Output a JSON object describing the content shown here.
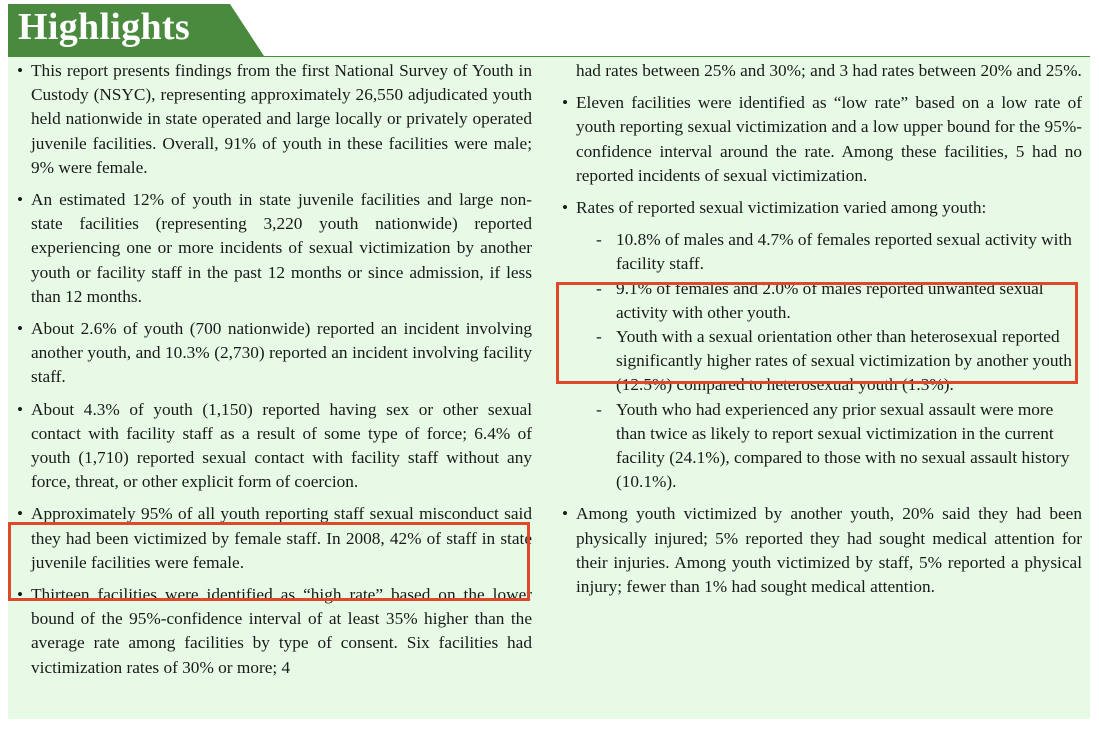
{
  "header": {
    "title": "Highlights"
  },
  "left_column": {
    "bullets": [
      "This report presents findings from the first National Survey of Youth in Custody (NSYC), representing approximately 26,550 adjudicated youth held nationwide in state operated and large locally or privately operated juvenile facilities. Overall, 91% of youth in these facilities were male; 9% were female.",
      "An estimated 12% of youth in state juvenile facilities and large non-state facilities (representing 3,220 youth nationwide) reported experiencing one or more incidents of sexual victimization by another youth or facility staff in the past 12 months or since admission, if less than 12 months.",
      "About 2.6% of youth (700 nationwide) reported an incident involving another youth, and 10.3% (2,730) reported an incident involving facility staff.",
      "About 4.3% of youth (1,150) reported having sex or other sexual contact with facility staff as a result of some type of force; 6.4% of youth (1,710) reported sexual contact with facility staff without any force, threat, or other explicit form of coercion.",
      "Approximately 95% of all youth reporting staff sexual misconduct said they had been victimized by female staff. In 2008, 42% of staff in state juvenile facilities were female.",
      "Thirteen facilities were identified as “high rate” based on the lower bound of the 95%-confidence interval of at least 35% higher than the average rate among facilities by type of consent. Six facilities had victimization rates of 30% or more; 4"
    ]
  },
  "right_column": {
    "continuation": "had rates between 25% and 30%; and 3 had rates between 20% and 25%.",
    "bullet_low_rate": "Eleven facilities were identified as “low rate” based on a low rate of youth reporting sexual victimization and a low upper bound for the 95%-confidence interval around the rate. Among these facilities, 5 had no reported incidents of sexual victimization.",
    "bullet_rates_intro": "Rates of reported sexual victimization varied among youth:",
    "sub_items": [
      "10.8% of males and 4.7% of females reported sexual activity with facility staff.",
      "9.1% of females and 2.0% of males reported unwanted sexual activity with other youth.",
      "Youth with a sexual orientation other than heterosexual reported significantly higher rates of sexual victimization by another youth (12.5%) compared to heterosexual youth (1.3%).",
      "Youth who had experienced any prior sexual assault were more than twice as likely to report sexual victimization in the current facility (24.1%), compared to those with no sexual assault history (10.1%)."
    ],
    "bullet_injury": "Among youth victimized by another youth, 20% said they had been physically injured; 5% reported they had sought medical attention for their injuries. Among youth victimized by staff, 5% reported a physical injury; fewer than 1% had sought medical attention."
  },
  "symbols": {
    "bullet": "•",
    "dash": "-"
  },
  "colors": {
    "banner": "#4a8a3e",
    "panel": "#e6fae6",
    "highlight_box": "#e0482c"
  }
}
